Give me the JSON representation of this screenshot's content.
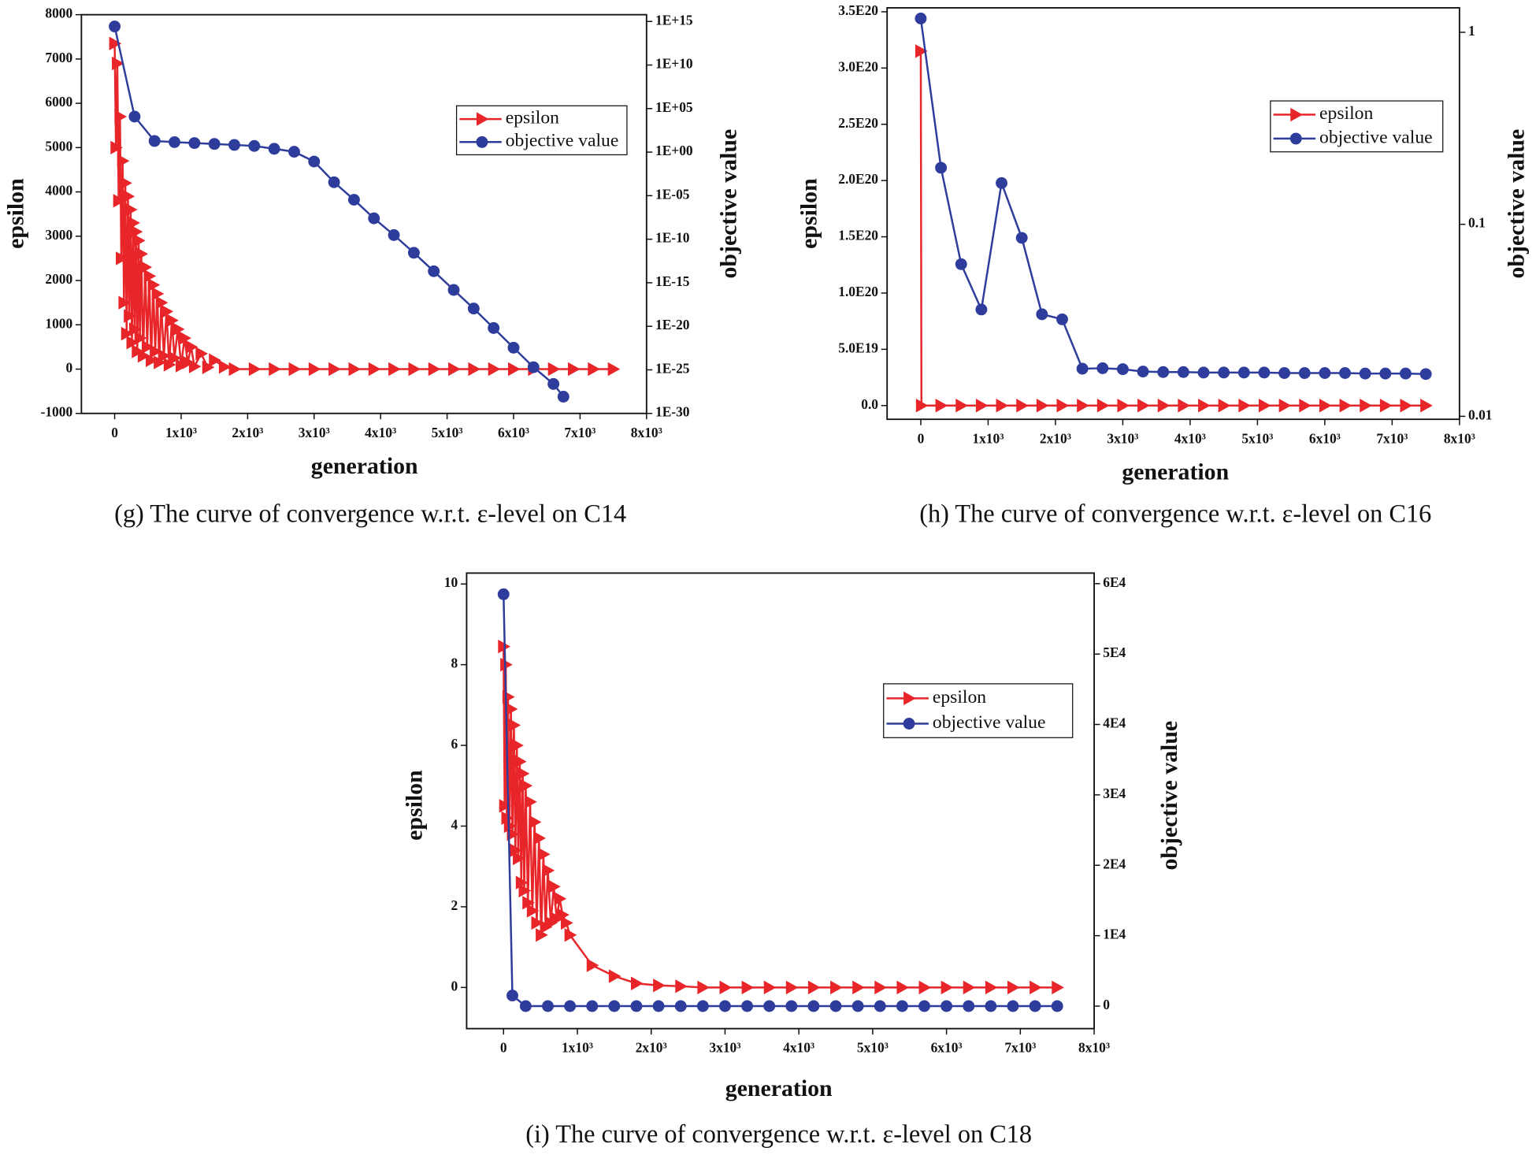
{
  "chart_data": [
    {
      "type": "line",
      "caption": "(g) The curve of convergence w.r.t. ε-level on C14",
      "xlabel": "generation",
      "ylabel": "epsilon",
      "y2label": "objective value",
      "xlim": [
        -500,
        8000
      ],
      "ylim": [
        -1000,
        8000
      ],
      "y2lim": [
        1e-30,
        6000000000000000.0
      ],
      "y2scale": "log",
      "legend": "upper right",
      "xticks": [
        0,
        {
          "value": 1000,
          "label": "1x10³"
        },
        {
          "value": 2000,
          "label": "2x10³"
        },
        {
          "value": 3000,
          "label": "3x10³"
        },
        {
          "value": 4000,
          "label": "4x10³"
        },
        {
          "value": 5000,
          "label": "5x10³"
        },
        {
          "value": 6000,
          "label": "6x10³"
        },
        {
          "value": 7000,
          "label": "7x10³"
        },
        {
          "value": 8000,
          "label": "8x10³"
        }
      ],
      "yticks": [
        -1000,
        0,
        1000,
        2000,
        3000,
        4000,
        5000,
        6000,
        7000,
        8000
      ],
      "y2ticks": [
        {
          "value": 1000000000000000.0,
          "label": "1E+15"
        },
        {
          "value": 10000000000.0,
          "label": "1E+10"
        },
        {
          "value": 100000.0,
          "label": "1E+05"
        },
        {
          "value": 1,
          "label": "1E+00"
        },
        {
          "value": 1e-05,
          "label": "1E-05"
        },
        {
          "value": 1e-10,
          "label": "1E-10"
        },
        {
          "value": 1e-15,
          "label": "1E-15"
        },
        {
          "value": 1e-20,
          "label": "1E-20"
        },
        {
          "value": 1e-25,
          "label": "1E-25"
        },
        {
          "value": 1e-30,
          "label": "1E-30"
        }
      ],
      "series": [
        {
          "name": "epsilon",
          "color": "#e8262a",
          "marker": "triangle",
          "axis": "y",
          "x": [
            0,
            20,
            40,
            60,
            80,
            100,
            120,
            140,
            160,
            180,
            200,
            220,
            240,
            260,
            280,
            300,
            320,
            340,
            360,
            380,
            400,
            430,
            460,
            490,
            520,
            550,
            580,
            610,
            640,
            670,
            700,
            740,
            780,
            820,
            860,
            900,
            950,
            1000,
            1050,
            1100,
            1150,
            1200,
            1300,
            1400,
            1500,
            1650,
            1800,
            2100,
            2400,
            2700,
            3000,
            3300,
            3600,
            3900,
            4200,
            4500,
            4800,
            5100,
            5400,
            5700,
            6000,
            6300,
            6600,
            6900,
            7200,
            7500
          ],
          "values": [
            7350,
            5000,
            6900,
            3800,
            5700,
            2500,
            4700,
            1500,
            4200,
            800,
            3900,
            1200,
            3600,
            600,
            3300,
            900,
            3100,
            400,
            2900,
            700,
            2600,
            300,
            2300,
            500,
            2100,
            200,
            1900,
            400,
            1700,
            150,
            1500,
            300,
            1300,
            100,
            1100,
            250,
            900,
            80,
            700,
            150,
            500,
            60,
            350,
            40,
            200,
            50,
            0,
            0,
            0,
            0,
            0,
            0,
            0,
            0,
            0,
            0,
            0,
            0,
            0,
            0,
            0,
            0,
            0,
            0,
            0,
            0
          ]
        },
        {
          "name": "objective value",
          "color": "#2e3d9c",
          "marker": "circle",
          "axis": "y2",
          "x": [
            0,
            300,
            600,
            900,
            1200,
            1500,
            1800,
            2100,
            2400,
            2700,
            3000,
            3300,
            3600,
            3900,
            4200,
            4500,
            4800,
            5100,
            5400,
            5700,
            6000,
            6300,
            6600,
            6750
          ],
          "values": [
            270000000000000.0,
            12000.0,
            19,
            14,
            11,
            8.7,
            6.7,
            5.1,
            2.4,
            1.1,
            0.083,
            0.00035,
            3.4e-06,
            2.5e-08,
            3e-10,
            2.8e-12,
            2.1e-14,
            1.5e-16,
            1.1e-18,
            6.3e-21,
            3.5e-23,
            2e-25,
            2.4e-27,
            8.3e-29
          ]
        }
      ]
    },
    {
      "type": "line",
      "caption": "(h) The curve of convergence w.r.t. ε-level on C16",
      "xlabel": "generation",
      "ylabel": "epsilon",
      "y2label": "objective value",
      "xlim": [
        -500,
        8000
      ],
      "ylim": [
        -1.22e+19,
        3.535e+20
      ],
      "y2lim": [
        0.00965,
        1.341
      ],
      "y2scale": "log",
      "legend": "upper right",
      "xticks": [
        0,
        {
          "value": 1000,
          "label": "1x10³"
        },
        {
          "value": 2000,
          "label": "2x10³"
        },
        {
          "value": 3000,
          "label": "3x10³"
        },
        {
          "value": 4000,
          "label": "4x10³"
        },
        {
          "value": 5000,
          "label": "5x10³"
        },
        {
          "value": 6000,
          "label": "6x10³"
        },
        {
          "value": 7000,
          "label": "7x10³"
        },
        {
          "value": 8000,
          "label": "8x10³"
        }
      ],
      "yticks": [
        {
          "value": 0,
          "label": "0.0"
        },
        {
          "value": 5e+19,
          "label": "5.0E19"
        },
        {
          "value": 1e+20,
          "label": "1.0E20"
        },
        {
          "value": 1.5e+20,
          "label": "1.5E20"
        },
        {
          "value": 2e+20,
          "label": "2.0E20"
        },
        {
          "value": 2.5e+20,
          "label": "2.5E20"
        },
        {
          "value": 3e+20,
          "label": "3.0E20"
        },
        {
          "value": 3.5e+20,
          "label": "3.5E20"
        }
      ],
      "y2ticks": [
        1,
        0.1,
        0.01
      ],
      "series": [
        {
          "name": "epsilon",
          "color": "#e8262a",
          "marker": "triangle",
          "axis": "y",
          "x": [
            0,
            10,
            300,
            600,
            900,
            1200,
            1500,
            1800,
            2100,
            2400,
            2700,
            3000,
            3300,
            3600,
            3900,
            4200,
            4500,
            4800,
            5100,
            5400,
            5700,
            6000,
            6300,
            6600,
            6900,
            7200,
            7500
          ],
          "values": [
            3.15e+20,
            0,
            0,
            0,
            0,
            0,
            0,
            0,
            0,
            0,
            0,
            0,
            0,
            0,
            0,
            0,
            0,
            0,
            0,
            0,
            0,
            0,
            0,
            0,
            0,
            0,
            0
          ]
        },
        {
          "name": "objective value",
          "color": "#2e3d9c",
          "marker": "circle",
          "axis": "y2",
          "x": [
            0,
            300,
            600,
            900,
            1200,
            1500,
            1800,
            2100,
            2400,
            2700,
            3000,
            3300,
            3600,
            3900,
            4200,
            4500,
            4800,
            5100,
            5400,
            5700,
            6000,
            6300,
            6600,
            6900,
            7200,
            7500
          ],
          "values": [
            1.18,
            0.197,
            0.062,
            0.036,
            0.164,
            0.085,
            0.034,
            0.032,
            0.0177,
            0.0178,
            0.0176,
            0.0171,
            0.017,
            0.017,
            0.0169,
            0.0169,
            0.0169,
            0.0169,
            0.0168,
            0.0168,
            0.0168,
            0.0168,
            0.0167,
            0.0167,
            0.0167,
            0.0166
          ]
        }
      ]
    },
    {
      "type": "line",
      "caption": "(i) The curve of convergence w.r.t. ε-level on C18",
      "xlabel": "generation",
      "ylabel": "epsilon",
      "y2label": "objective value",
      "xlim": [
        -500,
        8000
      ],
      "ylim": [
        -1.02,
        10.27
      ],
      "y2lim": [
        -3200,
        61500
      ],
      "y2scale": "linear",
      "legend": "upper right",
      "xticks": [
        0,
        {
          "value": 1000,
          "label": "1x10³"
        },
        {
          "value": 2000,
          "label": "2x10³"
        },
        {
          "value": 3000,
          "label": "3x10³"
        },
        {
          "value": 4000,
          "label": "4x10³"
        },
        {
          "value": 5000,
          "label": "5x10³"
        },
        {
          "value": 6000,
          "label": "6x10³"
        },
        {
          "value": 7000,
          "label": "7x10³"
        },
        {
          "value": 8000,
          "label": "8x10³"
        }
      ],
      "yticks": [
        0,
        2,
        4,
        6,
        8,
        10
      ],
      "y2ticks": [
        0,
        {
          "value": 10000,
          "label": "1E4"
        },
        {
          "value": 20000,
          "label": "2E4"
        },
        {
          "value": 30000,
          "label": "3E4"
        },
        {
          "value": 40000,
          "label": "4E4"
        },
        {
          "value": 50000,
          "label": "5E4"
        },
        {
          "value": 60000,
          "label": "6E4"
        }
      ],
      "series": [
        {
          "name": "epsilon",
          "color": "#e8262a",
          "marker": "triangle",
          "axis": "y",
          "x": [
            0,
            15,
            30,
            45,
            60,
            80,
            100,
            120,
            140,
            160,
            180,
            200,
            220,
            240,
            260,
            280,
            300,
            330,
            360,
            390,
            420,
            450,
            480,
            510,
            540,
            570,
            600,
            640,
            680,
            720,
            760,
            800,
            850,
            900,
            1200,
            1500,
            1800,
            2100,
            2400,
            2700,
            3000,
            3300,
            3600,
            3900,
            4200,
            4500,
            4800,
            5100,
            5400,
            5700,
            6000,
            6300,
            6600,
            6900,
            7200,
            7500
          ],
          "values": [
            8.45,
            4.5,
            8,
            4.2,
            7.2,
            4,
            6.9,
            3.8,
            6.5,
            3.4,
            6,
            3.2,
            5.6,
            2.6,
            5.3,
            2.4,
            5,
            2.1,
            4.6,
            1.9,
            4.1,
            1.6,
            3.7,
            1.3,
            3.3,
            1.5,
            2.9,
            1.6,
            2.5,
            1.7,
            2.2,
            1.8,
            1.6,
            1.3,
            0.55,
            0.28,
            0.1,
            0.05,
            0.03,
            0,
            0,
            0,
            0,
            0,
            0,
            0,
            0,
            0,
            0,
            0,
            0,
            0,
            0,
            0,
            0,
            0
          ]
        },
        {
          "name": "objective value",
          "color": "#2e3d9c",
          "marker": "circle",
          "axis": "y2",
          "x": [
            0,
            120,
            300,
            600,
            900,
            1200,
            1500,
            1800,
            2100,
            2400,
            2700,
            3000,
            3300,
            3600,
            3900,
            4200,
            4500,
            4800,
            5100,
            5400,
            5700,
            6000,
            6300,
            6600,
            6900,
            7200,
            7500
          ],
          "values": [
            58500,
            1500,
            0,
            0,
            0,
            0,
            0,
            0,
            0,
            0,
            0,
            0,
            0,
            0,
            0,
            0,
            0,
            0,
            0,
            0,
            0,
            0,
            0,
            0,
            0,
            0,
            0
          ]
        }
      ]
    }
  ]
}
